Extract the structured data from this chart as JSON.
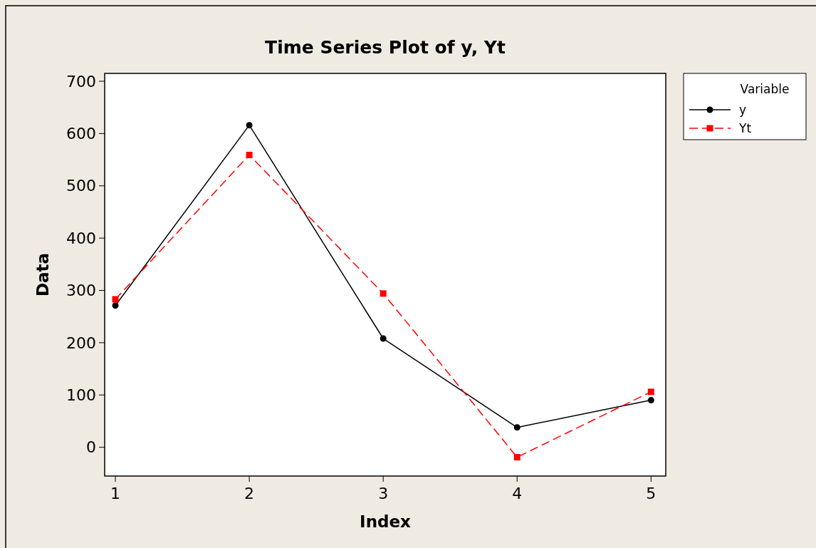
{
  "chart_data": {
    "type": "line",
    "title": "Time Series Plot of y, Yt",
    "xlabel": "Index",
    "ylabel": "Data",
    "legend_title": "Variable",
    "x": [
      1,
      2,
      3,
      4,
      5
    ],
    "series": [
      {
        "name": "y",
        "color": "#000000",
        "values": [
          271,
          616,
          208,
          38,
          90
        ],
        "marker": "circle",
        "line_style": "solid"
      },
      {
        "name": "Yt",
        "color": "#ff0000",
        "values": [
          283,
          559,
          294,
          -19,
          106
        ],
        "marker": "square",
        "line_style": "dashed"
      }
    ],
    "xlim": [
      0.92,
      5.11
    ],
    "xticks": [
      1,
      2,
      3,
      4,
      5
    ],
    "ylim": [
      -55,
      715
    ],
    "yticks": [
      0,
      100,
      200,
      300,
      400,
      500,
      600,
      700
    ],
    "grid": false,
    "legend": "right"
  }
}
